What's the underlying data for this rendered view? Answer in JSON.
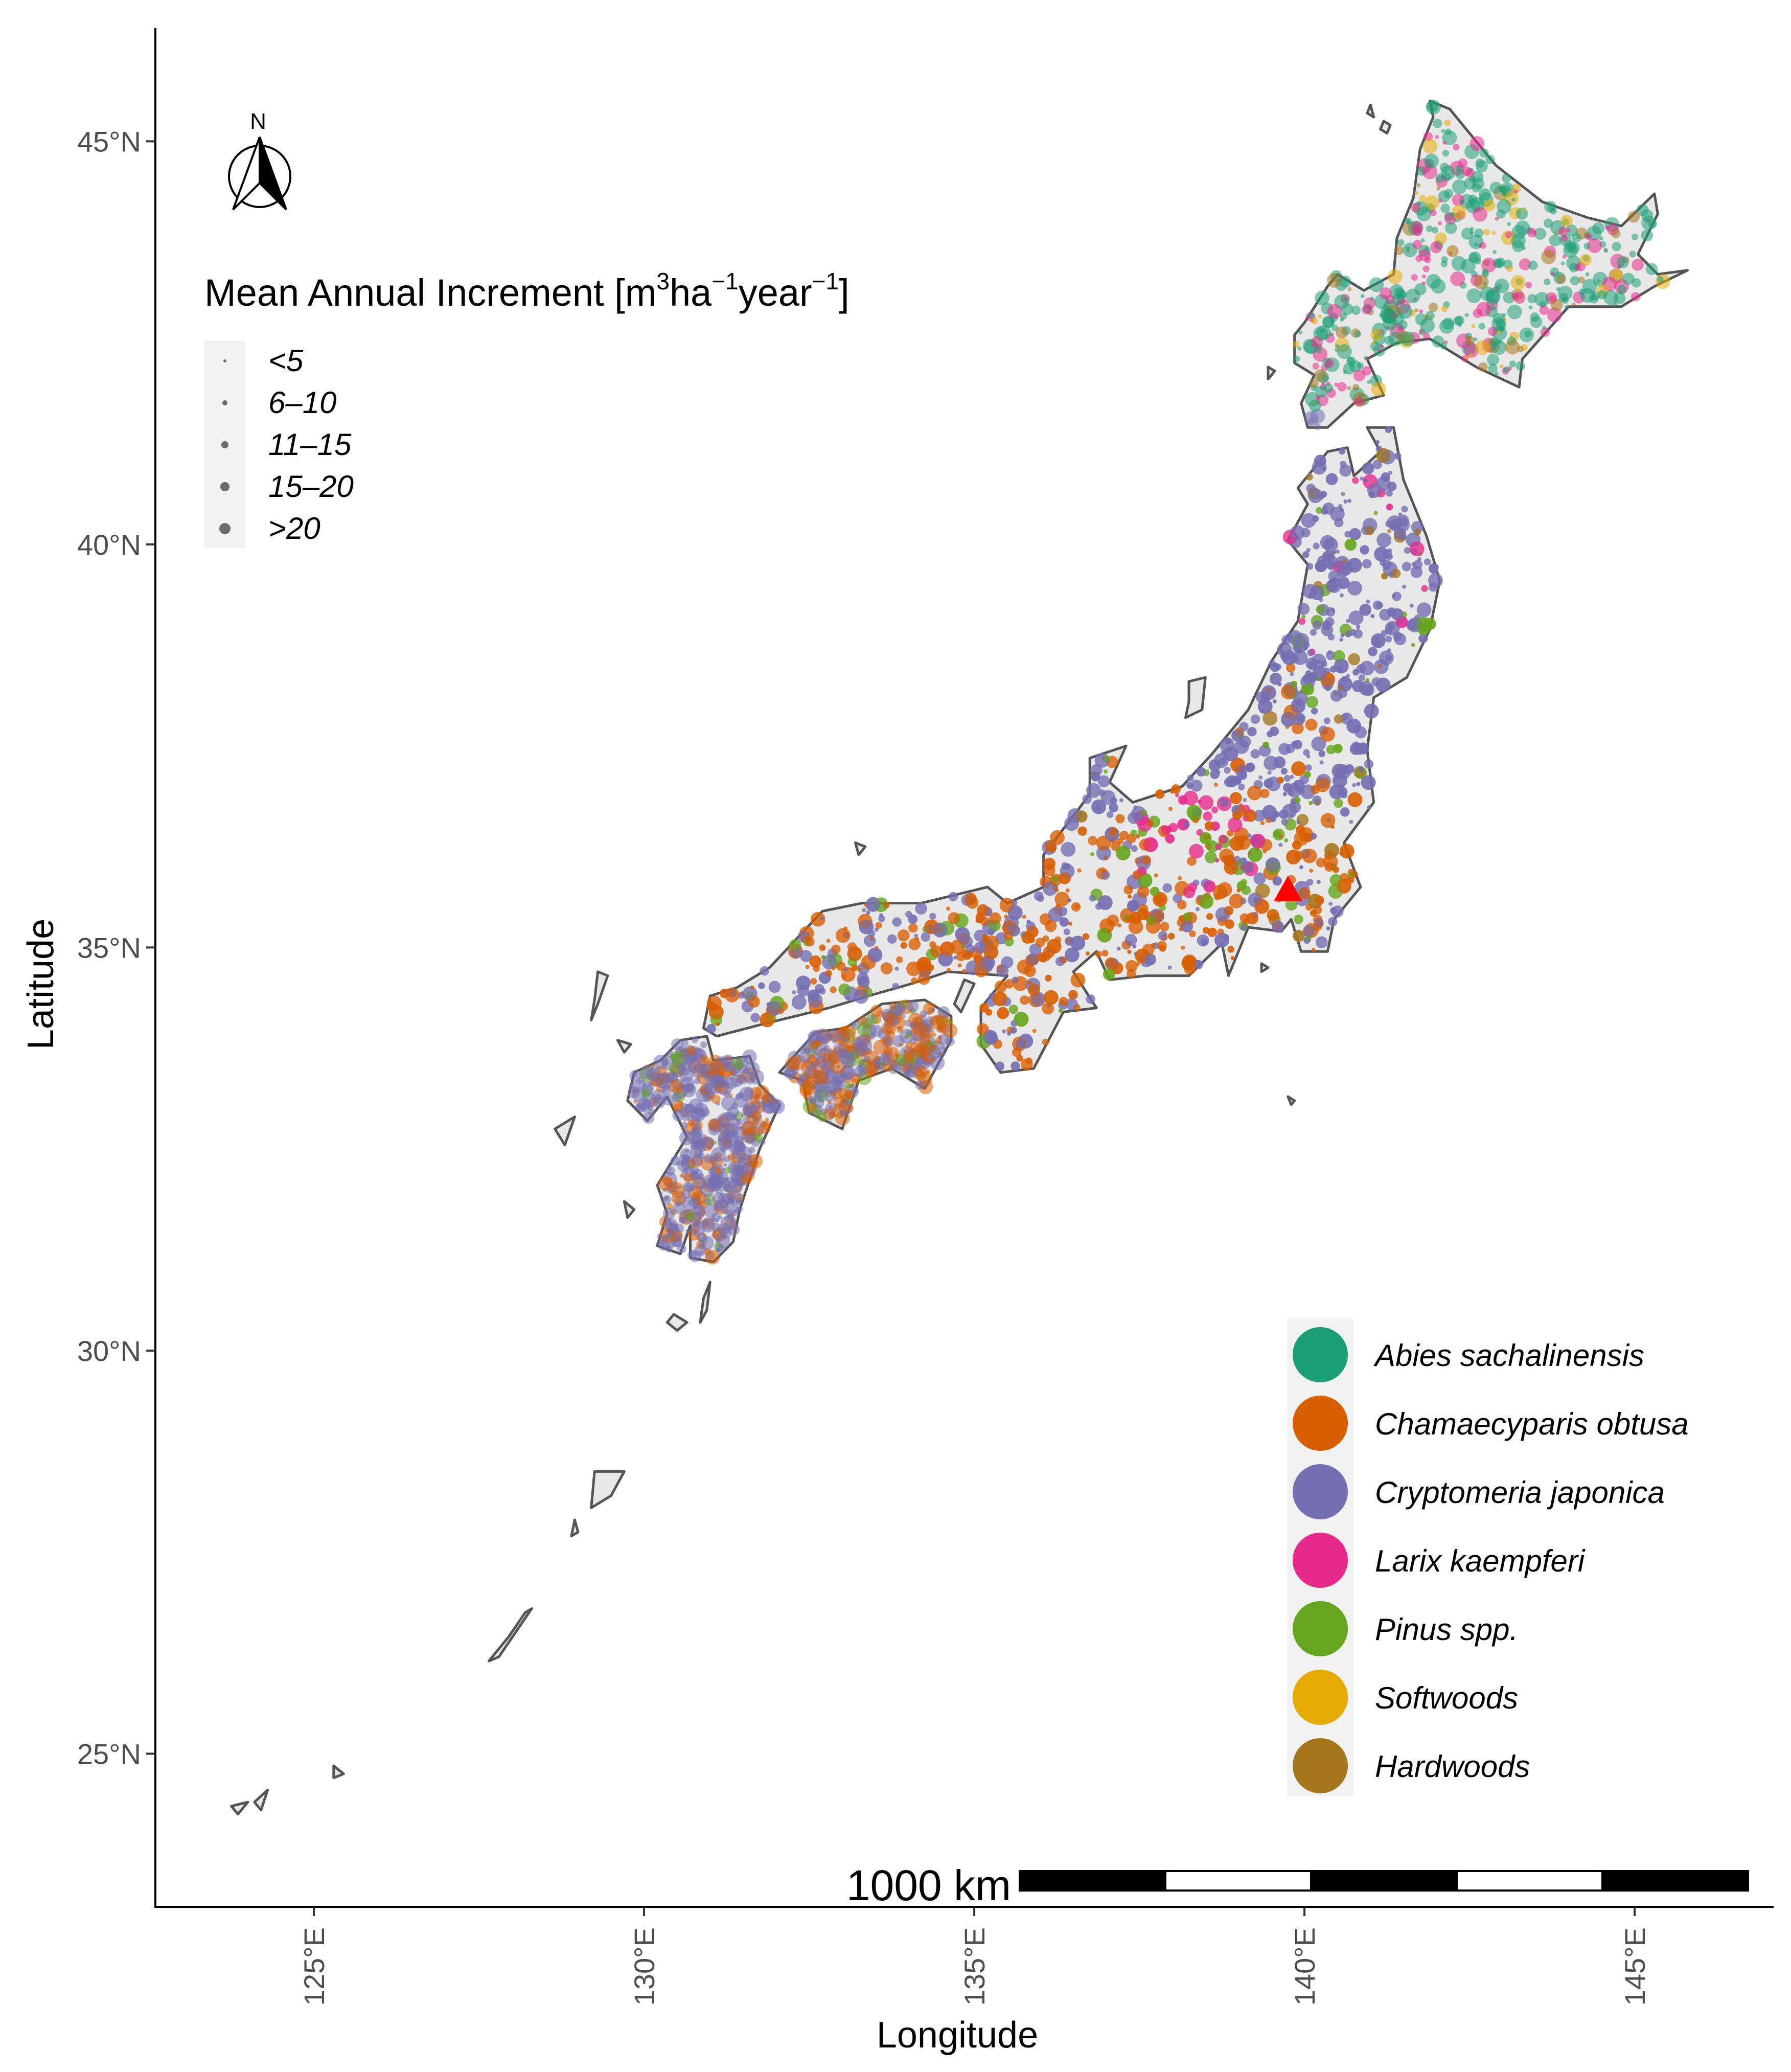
{
  "axes": {
    "x_title": "Longitude",
    "y_title": "Latitude",
    "x_ticks": [
      {
        "value": 125,
        "label": "125°E"
      },
      {
        "value": 130,
        "label": "130°E"
      },
      {
        "value": 135,
        "label": "135°E"
      },
      {
        "value": 140,
        "label": "140°E"
      },
      {
        "value": 145,
        "label": "145°E"
      }
    ],
    "y_ticks": [
      {
        "value": 45,
        "label": "45°N"
      },
      {
        "value": 40,
        "label": "40°N"
      },
      {
        "value": 35,
        "label": "35°N"
      },
      {
        "value": 30,
        "label": "30°N"
      },
      {
        "value": 25,
        "label": "25°N"
      }
    ],
    "xlim": [
      122.6,
      147.3
    ],
    "ylim": [
      23.1,
      46.4
    ]
  },
  "north_arrow": {
    "label": "N"
  },
  "size_legend": {
    "title_main": "Mean Annual Increment [m",
    "title_sup1": "3",
    "title_mid1": "ha",
    "title_sup2": "−1",
    "title_mid2": "year",
    "title_sup3": "−1",
    "title_end": "]",
    "entries": [
      "<5",
      "6–10",
      "11–15",
      "15–20",
      ">20"
    ]
  },
  "species_legend": [
    {
      "label": "Abies sachalinensis",
      "color": "#1b9e77",
      "italic": true
    },
    {
      "label": "Chamaecyparis obtusa",
      "color": "#d95f02",
      "italic": true
    },
    {
      "label": "Cryptomeria japonica",
      "color": "#7570b3",
      "italic": true
    },
    {
      "label": "Larix kaempferi",
      "color": "#e7298a",
      "italic": true
    },
    {
      "label": "Pinus spp.",
      "color": "#66a61e",
      "italic": true
    },
    {
      "label": "Softwoods",
      "color": "#e6ab02",
      "italic": false
    },
    {
      "label": "Hardwoods",
      "color": "#a6761d",
      "italic": false
    }
  ],
  "scale_bar": {
    "label": "1000 km"
  },
  "site_marker": {
    "name": "study site",
    "lon": 139.75,
    "lat": 35.7,
    "color": "#ff0000"
  },
  "land_fill": "#e8e8e8",
  "coast_color": "#555555"
}
